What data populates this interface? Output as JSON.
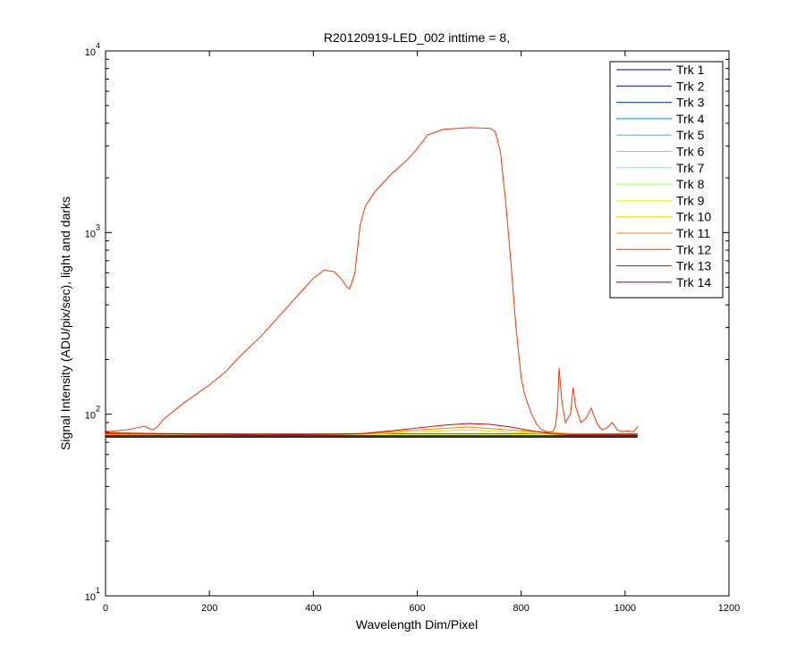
{
  "chart_data": {
    "type": "line",
    "title": "R20120919-LED_002 inttime = 8,",
    "xlabel": "Wavelength Dim/Pixel",
    "ylabel": "Signal Intensity (ADU/pix/sec), light and darks",
    "xlim": [
      0,
      1200
    ],
    "ylim": [
      10,
      10000
    ],
    "yscale": "log",
    "grid": false,
    "legend_position": "top-right",
    "xticks": [
      0,
      200,
      400,
      600,
      800,
      1000,
      1200
    ],
    "xtick_labels": [
      "0",
      "200",
      "400",
      "600",
      "800",
      "1000",
      "1200"
    ],
    "yticks": [
      10,
      100,
      1000,
      10000
    ],
    "ytick_bases": [
      "10",
      "10",
      "10",
      "10"
    ],
    "ytick_exponents": [
      "1",
      "2",
      "3",
      "4"
    ],
    "series": [
      {
        "name": "Trk 1",
        "color": "#00008f",
        "x": [
          0,
          1024
        ],
        "y": [
          77,
          77
        ]
      },
      {
        "name": "Trk 2",
        "color": "#0000df",
        "x": [
          0,
          1024
        ],
        "y": [
          76.5,
          76.5
        ]
      },
      {
        "name": "Trk 3",
        "color": "#0030ff",
        "x": [
          0,
          1024
        ],
        "y": [
          78,
          78
        ]
      },
      {
        "name": "Trk 4",
        "color": "#0080ff",
        "x": [
          0,
          1024
        ],
        "y": [
          77.5,
          77.5
        ]
      },
      {
        "name": "Trk 5",
        "color": "#00cfff",
        "x": [
          0,
          1024
        ],
        "y": [
          77.2,
          77.2
        ]
      },
      {
        "name": "Trk 6",
        "color": "#20ffdf",
        "x": [
          0,
          1024
        ],
        "y": [
          77,
          77
        ]
      },
      {
        "name": "Trk 7",
        "color": "#60ff9f",
        "x": [
          0,
          1024
        ],
        "y": [
          76.8,
          76.8
        ]
      },
      {
        "name": "Trk 8",
        "color": "#9fff60",
        "x": [
          0,
          1024
        ],
        "y": [
          77.1,
          77.1
        ]
      },
      {
        "name": "Trk 9",
        "color": "#dfff20",
        "x": [
          0,
          1024
        ],
        "y": [
          77.3,
          77.3
        ]
      },
      {
        "name": "Trk 10",
        "color": "#ffcf00",
        "x": [
          0,
          300,
          500,
          600,
          700,
          800,
          900,
          1024
        ],
        "y": [
          77,
          77,
          77.5,
          80,
          82,
          79,
          77.5,
          77
        ]
      },
      {
        "name": "Trk 11",
        "color": "#ff8000",
        "x": [
          0,
          300,
          500,
          600,
          700,
          800,
          900,
          1024
        ],
        "y": [
          77,
          77,
          78,
          82,
          85,
          81,
          78,
          77
        ]
      },
      {
        "name": "Trk 12",
        "color": "#ff3000",
        "x": [
          0,
          20,
          40,
          60,
          75,
          90,
          100,
          110,
          150,
          200,
          230,
          260,
          300,
          350,
          400,
          420,
          440,
          455,
          465,
          470,
          480,
          490,
          500,
          520,
          550,
          580,
          600,
          620,
          650,
          700,
          740,
          750,
          760,
          770,
          780,
          790,
          800,
          805,
          810,
          820,
          830,
          840,
          850,
          860,
          866,
          870,
          873,
          878,
          885,
          895,
          900,
          905,
          915,
          925,
          935,
          945,
          955,
          965,
          975,
          985,
          995,
          1005,
          1015,
          1020,
          1024
        ],
        "y": [
          80,
          81,
          82,
          84,
          86,
          82,
          85,
          93,
          115,
          145,
          170,
          210,
          270,
          390,
          560,
          620,
          610,
          550,
          500,
          490,
          600,
          1100,
          1400,
          1700,
          2100,
          2500,
          2900,
          3450,
          3700,
          3780,
          3750,
          3600,
          2800,
          1500,
          700,
          300,
          160,
          135,
          120,
          100,
          88,
          82,
          80,
          80,
          85,
          110,
          180,
          120,
          90,
          100,
          140,
          110,
          90,
          95,
          108,
          90,
          82,
          84,
          90,
          82,
          80,
          81,
          80,
          82,
          86
        ]
      },
      {
        "name": "Trk 13",
        "color": "#df0000",
        "x": [
          0,
          300,
          450,
          500,
          550,
          600,
          650,
          700,
          740,
          780,
          820,
          860,
          900,
          1024
        ],
        "y": [
          79,
          77,
          77.5,
          78.5,
          81,
          84,
          87,
          89,
          88,
          85,
          81,
          78,
          77,
          77
        ]
      },
      {
        "name": "Trk 14",
        "color": "#8f0000",
        "x": [
          0,
          1024
        ],
        "y": [
          76.2,
          76.2
        ]
      },
      {
        "name": "",
        "color": "#000000",
        "x": [
          0,
          1024
        ],
        "y": [
          75,
          75
        ]
      }
    ]
  }
}
